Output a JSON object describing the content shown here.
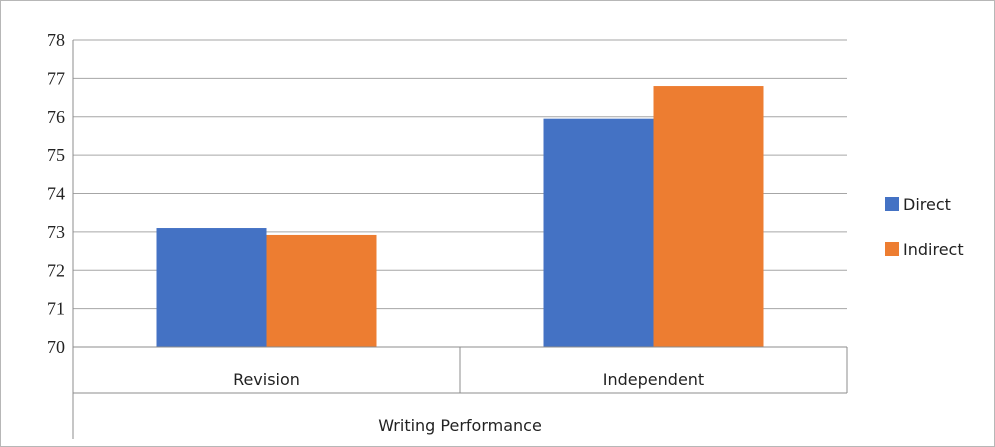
{
  "chart_data": {
    "type": "bar",
    "categories": [
      "Revision",
      "Independent"
    ],
    "group_label": "Writing Performance",
    "series": [
      {
        "name": "Direct",
        "values": [
          73.1,
          75.95
        ],
        "color": "#4472c4"
      },
      {
        "name": "Indirect",
        "values": [
          72.92,
          76.8
        ],
        "color": "#ed7d31"
      }
    ],
    "ylim": [
      70,
      78
    ],
    "yticks": [
      70,
      71,
      72,
      73,
      74,
      75,
      76,
      77,
      78
    ],
    "grid": true,
    "legend": "right"
  }
}
